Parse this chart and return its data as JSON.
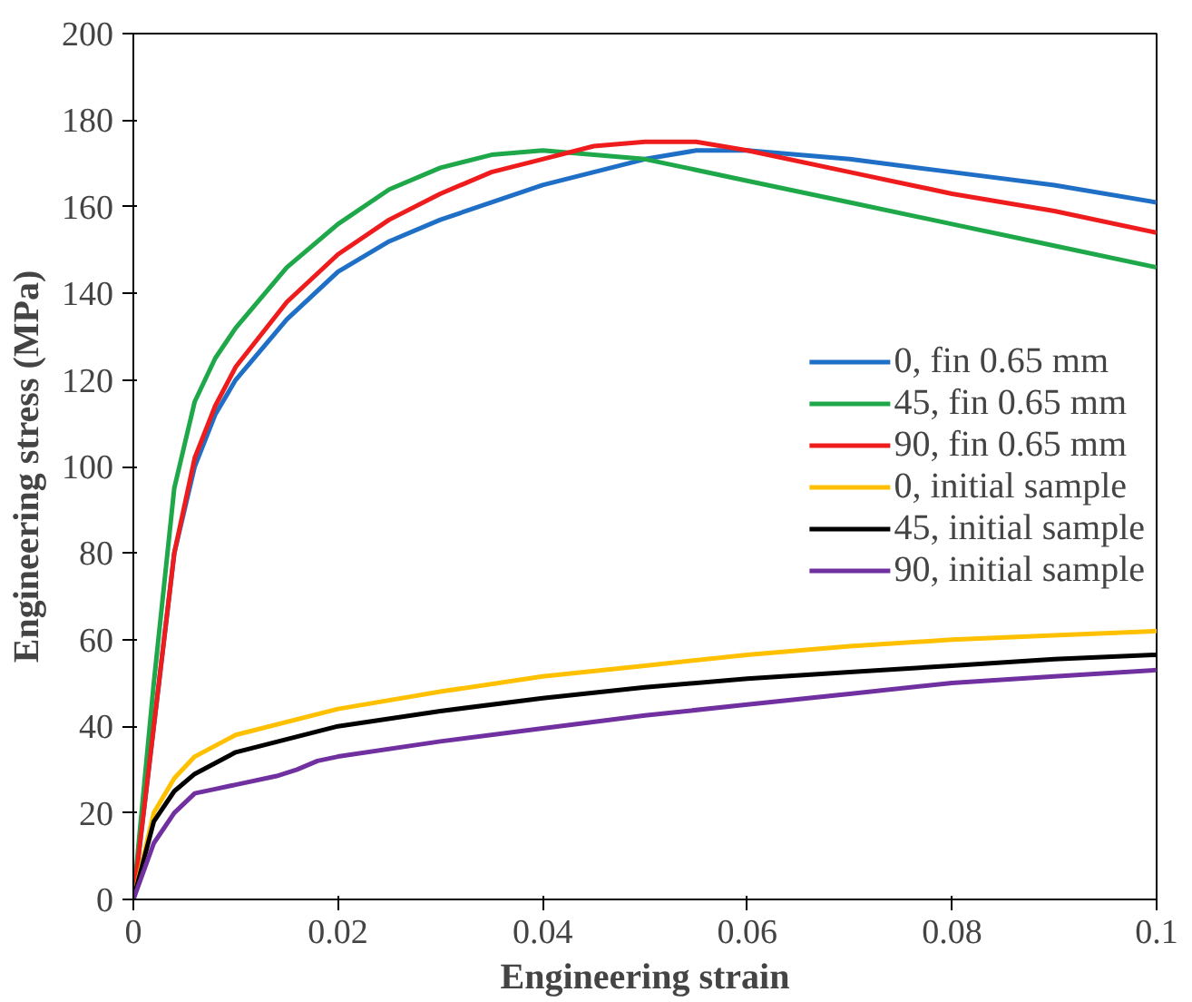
{
  "chart_data": {
    "type": "line",
    "xlabel": "Engineering strain",
    "ylabel": "Engineering stress (MPa)",
    "xlim": [
      0,
      0.1
    ],
    "ylim": [
      0,
      200
    ],
    "xticks": [
      0,
      0.02,
      0.04,
      0.06,
      0.08,
      0.1
    ],
    "yticks": [
      0,
      20,
      40,
      60,
      80,
      100,
      120,
      140,
      160,
      180,
      200
    ],
    "grid": false,
    "legend": "right",
    "line_style": "solid",
    "marker": "none",
    "series": [
      {
        "name": "0, fin 0.65 mm",
        "color": "#1f6fc6",
        "x": [
          0,
          0.002,
          0.004,
          0.006,
          0.008,
          0.01,
          0.015,
          0.02,
          0.025,
          0.03,
          0.04,
          0.05,
          0.055,
          0.06,
          0.07,
          0.08,
          0.09,
          0.1
        ],
        "values": [
          0,
          40,
          80,
          100,
          112,
          120,
          134,
          145,
          152,
          157,
          165,
          171,
          173,
          173,
          171,
          168,
          165,
          161
        ]
      },
      {
        "name": "45, fin 0.65 mm",
        "color": "#1fa84a",
        "x": [
          0,
          0.002,
          0.004,
          0.006,
          0.008,
          0.01,
          0.015,
          0.02,
          0.025,
          0.03,
          0.035,
          0.04,
          0.045,
          0.05,
          0.06,
          0.07,
          0.08,
          0.09,
          0.1
        ],
        "values": [
          0,
          50,
          95,
          115,
          125,
          132,
          146,
          156,
          164,
          169,
          172,
          173,
          172,
          171,
          166,
          161,
          156,
          151,
          146
        ]
      },
      {
        "name": "90, fin 0.65 mm",
        "color": "#ee1c1c",
        "x": [
          0,
          0.002,
          0.004,
          0.006,
          0.008,
          0.01,
          0.015,
          0.02,
          0.025,
          0.03,
          0.035,
          0.04,
          0.045,
          0.05,
          0.055,
          0.06,
          0.07,
          0.08,
          0.09,
          0.1
        ],
        "values": [
          0,
          40,
          80,
          102,
          114,
          123,
          138,
          149,
          157,
          163,
          168,
          171,
          174,
          175,
          175,
          173,
          168,
          163,
          159,
          154
        ]
      },
      {
        "name": "0, initial sample",
        "color": "#ffc000",
        "x": [
          0,
          0.002,
          0.004,
          0.006,
          0.01,
          0.02,
          0.03,
          0.04,
          0.05,
          0.06,
          0.07,
          0.08,
          0.09,
          0.1
        ],
        "values": [
          0,
          20,
          28,
          33,
          38,
          44,
          48,
          51.5,
          54,
          56.5,
          58.5,
          60,
          61,
          62
        ]
      },
      {
        "name": "45, initial sample",
        "color": "#000000",
        "x": [
          0,
          0.002,
          0.004,
          0.006,
          0.01,
          0.02,
          0.03,
          0.04,
          0.05,
          0.06,
          0.07,
          0.08,
          0.09,
          0.1
        ],
        "values": [
          0,
          18,
          25,
          29,
          34,
          40,
          43.5,
          46.5,
          49,
          51,
          52.5,
          54,
          55.5,
          56.5
        ]
      },
      {
        "name": "90, initial sample",
        "color": "#7030a0",
        "x": [
          0,
          0.002,
          0.004,
          0.006,
          0.008,
          0.01,
          0.014,
          0.016,
          0.018,
          0.02,
          0.03,
          0.04,
          0.05,
          0.06,
          0.07,
          0.08,
          0.09,
          0.1
        ],
        "values": [
          0,
          13,
          20,
          24.5,
          25.5,
          26.5,
          28.5,
          30,
          32,
          33,
          36.5,
          39.5,
          42.5,
          45,
          47.5,
          50,
          51.5,
          53
        ]
      }
    ]
  }
}
